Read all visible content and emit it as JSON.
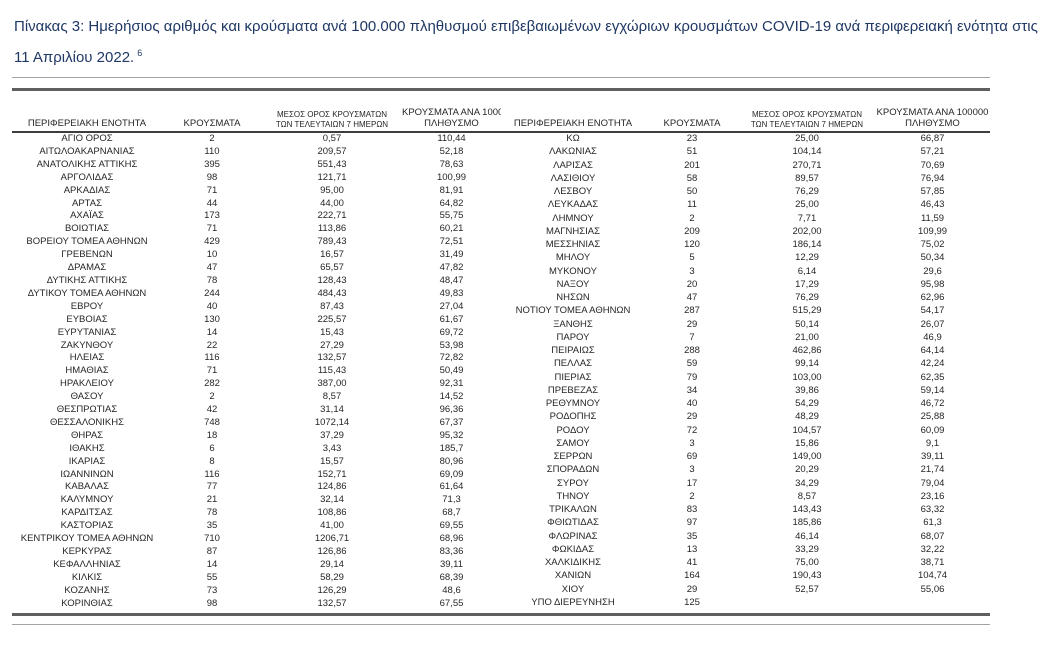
{
  "title": {
    "text": "Πίνακας 3:  Ημερήσιος αριθμός και κρούσματα ανά 100.000 πληθυσμού επιβεβαιωμένων εγχώριων κρουσμάτων COVID-19 ανά περιφερειακή ενότητα στις 11 Απριλίου 2022.",
    "footnote_marker": "6"
  },
  "colors": {
    "title_text": "#1f3864",
    "body_text": "#262626",
    "header_underline": "#3d3d3d",
    "rule_thick": "#5f5f5f",
    "rule_thin": "#a3a3a3"
  },
  "table": {
    "columns": {
      "region": "ΠΕΡΙΦΕΡΕΙΑΚΗ ΕΝΟΤΗΤΑ",
      "cases": "ΚΡΟΥΣΜΑΤΑ",
      "avg7_line1": "ΜΕΣΟΣ ΟΡΟΣ ΚΡΟΥΣΜΑΤΩΝ",
      "avg7_line2": "ΤΩΝ ΤΕΛΕΥΤΑΙΩΝ 7 ΗΜΕΡΩΝ",
      "per100k_line1": "ΚΡΟΥΣΜΑΤΑ ΑΝΑ 100000",
      "per100k_line2": "ΠΛΗΘΥΣΜΟ"
    },
    "left_rows": [
      [
        "ΑΓΙΟ ΟΡΟΣ",
        "2",
        "0,57",
        "110,44"
      ],
      [
        "ΑΙΤΩΛΟΑΚΑΡΝΑΝΙΑΣ",
        "110",
        "209,57",
        "52,18"
      ],
      [
        "ΑΝΑΤΟΛΙΚΗΣ ΑΤΤΙΚΗΣ",
        "395",
        "551,43",
        "78,63"
      ],
      [
        "ΑΡΓΟΛΙΔΑΣ",
        "98",
        "121,71",
        "100,99"
      ],
      [
        "ΑΡΚΑΔΙΑΣ",
        "71",
        "95,00",
        "81,91"
      ],
      [
        "ΑΡΤΑΣ",
        "44",
        "44,00",
        "64,82"
      ],
      [
        "ΑΧΑΪΑΣ",
        "173",
        "222,71",
        "55,75"
      ],
      [
        "ΒΟΙΩΤΙΑΣ",
        "71",
        "113,86",
        "60,21"
      ],
      [
        "ΒΟΡΕΙΟΥ ΤΟΜΕΑ ΑΘΗΝΩΝ",
        "429",
        "789,43",
        "72,51"
      ],
      [
        "ΓΡΕΒΕΝΩΝ",
        "10",
        "16,57",
        "31,49"
      ],
      [
        "ΔΡΑΜΑΣ",
        "47",
        "65,57",
        "47,82"
      ],
      [
        "ΔΥΤΙΚΗΣ ΑΤΤΙΚΗΣ",
        "78",
        "128,43",
        "48,47"
      ],
      [
        "ΔΥΤΙΚΟΥ ΤΟΜΕΑ ΑΘΗΝΩΝ",
        "244",
        "484,43",
        "49,83"
      ],
      [
        "ΕΒΡΟΥ",
        "40",
        "87,43",
        "27,04"
      ],
      [
        "ΕΥΒΟΙΑΣ",
        "130",
        "225,57",
        "61,67"
      ],
      [
        "ΕΥΡΥΤΑΝΙΑΣ",
        "14",
        "15,43",
        "69,72"
      ],
      [
        "ΖΑΚΥΝΘΟΥ",
        "22",
        "27,29",
        "53,98"
      ],
      [
        "ΗΛΕΙΑΣ",
        "116",
        "132,57",
        "72,82"
      ],
      [
        "ΗΜΑΘΙΑΣ",
        "71",
        "115,43",
        "50,49"
      ],
      [
        "ΗΡΑΚΛΕΙΟΥ",
        "282",
        "387,00",
        "92,31"
      ],
      [
        "ΘΑΣΟΥ",
        "2",
        "8,57",
        "14,52"
      ],
      [
        "ΘΕΣΠΡΩΤΙΑΣ",
        "42",
        "31,14",
        "96,36"
      ],
      [
        "ΘΕΣΣΑΛΟΝΙΚΗΣ",
        "748",
        "1072,14",
        "67,37"
      ],
      [
        "ΘΗΡΑΣ",
        "18",
        "37,29",
        "95,32"
      ],
      [
        "ΙΘΑΚΗΣ",
        "6",
        "3,43",
        "185,7"
      ],
      [
        "ΙΚΑΡΙΑΣ",
        "8",
        "15,57",
        "80,96"
      ],
      [
        "ΙΩΑΝΝΙΝΩΝ",
        "116",
        "152,71",
        "69,09"
      ],
      [
        "ΚΑΒΑΛΑΣ",
        "77",
        "124,86",
        "61,64"
      ],
      [
        "ΚΑΛΥΜΝΟΥ",
        "21",
        "32,14",
        "71,3"
      ],
      [
        "ΚΑΡΔΙΤΣΑΣ",
        "78",
        "108,86",
        "68,7"
      ],
      [
        "ΚΑΣΤΟΡΙΑΣ",
        "35",
        "41,00",
        "69,55"
      ],
      [
        "ΚΕΝΤΡΙΚΟΥ ΤΟΜΕΑ ΑΘΗΝΩΝ",
        "710",
        "1206,71",
        "68,96"
      ],
      [
        "ΚΕΡΚΥΡΑΣ",
        "87",
        "126,86",
        "83,36"
      ],
      [
        "ΚΕΦΑΛΛΗΝΙΑΣ",
        "14",
        "29,14",
        "39,11"
      ],
      [
        "ΚΙΛΚΙΣ",
        "55",
        "58,29",
        "68,39"
      ],
      [
        "ΚΟΖΑΝΗΣ",
        "73",
        "126,29",
        "48,6"
      ],
      [
        "ΚΟΡΙΝΘΙΑΣ",
        "98",
        "132,57",
        "67,55"
      ]
    ],
    "right_rows": [
      [
        "ΚΩ",
        "23",
        "25,00",
        "66,87"
      ],
      [
        "ΛΑΚΩΝΙΑΣ",
        "51",
        "104,14",
        "57,21"
      ],
      [
        "ΛΑΡΙΣΑΣ",
        "201",
        "270,71",
        "70,69"
      ],
      [
        "ΛΑΣΙΘΙΟΥ",
        "58",
        "89,57",
        "76,94"
      ],
      [
        "ΛΕΣΒΟΥ",
        "50",
        "76,29",
        "57,85"
      ],
      [
        "ΛΕΥΚΑΔΑΣ",
        "11",
        "25,00",
        "46,43"
      ],
      [
        "ΛΗΜΝΟΥ",
        "2",
        "7,71",
        "11,59"
      ],
      [
        "ΜΑΓΝΗΣΙΑΣ",
        "209",
        "202,00",
        "109,99"
      ],
      [
        "ΜΕΣΣΗΝΙΑΣ",
        "120",
        "186,14",
        "75,02"
      ],
      [
        "ΜΗΛΟΥ",
        "5",
        "12,29",
        "50,34"
      ],
      [
        "ΜΥΚΟΝΟΥ",
        "3",
        "6,14",
        "29,6"
      ],
      [
        "ΝΑΞΟΥ",
        "20",
        "17,29",
        "95,98"
      ],
      [
        "ΝΗΣΩΝ",
        "47",
        "76,29",
        "62,96"
      ],
      [
        "ΝΟΤΙΟΥ ΤΟΜΕΑ ΑΘΗΝΩΝ",
        "287",
        "515,29",
        "54,17"
      ],
      [
        "ΞΑΝΘΗΣ",
        "29",
        "50,14",
        "26,07"
      ],
      [
        "ΠΑΡΟΥ",
        "7",
        "21,00",
        "46,9"
      ],
      [
        "ΠΕΙΡΑΙΩΣ",
        "288",
        "462,86",
        "64,14"
      ],
      [
        "ΠΕΛΛΑΣ",
        "59",
        "99,14",
        "42,24"
      ],
      [
        "ΠΙΕΡΙΑΣ",
        "79",
        "103,00",
        "62,35"
      ],
      [
        "ΠΡΕΒΕΖΑΣ",
        "34",
        "39,86",
        "59,14"
      ],
      [
        "ΡΕΘΥΜΝΟΥ",
        "40",
        "54,29",
        "46,72"
      ],
      [
        "ΡΟΔΟΠΗΣ",
        "29",
        "48,29",
        "25,88"
      ],
      [
        "ΡΟΔΟΥ",
        "72",
        "104,57",
        "60,09"
      ],
      [
        "ΣΑΜΟΥ",
        "3",
        "15,86",
        "9,1"
      ],
      [
        "ΣΕΡΡΩΝ",
        "69",
        "149,00",
        "39,11"
      ],
      [
        "ΣΠΟΡΑΔΩΝ",
        "3",
        "20,29",
        "21,74"
      ],
      [
        "ΣΥΡΟΥ",
        "17",
        "34,29",
        "79,04"
      ],
      [
        "ΤΗΝΟΥ",
        "2",
        "8,57",
        "23,16"
      ],
      [
        "ΤΡΙΚΑΛΩΝ",
        "83",
        "143,43",
        "63,32"
      ],
      [
        "ΦΘΙΩΤΙΔΑΣ",
        "97",
        "185,86",
        "61,3"
      ],
      [
        "ΦΛΩΡΙΝΑΣ",
        "35",
        "46,14",
        "68,07"
      ],
      [
        "ΦΩΚΙΔΑΣ",
        "13",
        "33,29",
        "32,22"
      ],
      [
        "ΧΑΛΚΙΔΙΚΗΣ",
        "41",
        "75,00",
        "38,71"
      ],
      [
        "ΧΑΝΙΩΝ",
        "164",
        "190,43",
        "104,74"
      ],
      [
        "ΧΙΟΥ",
        "29",
        "52,57",
        "55,06"
      ],
      [
        "ΥΠΟ ΔΙΕΡΕΥΝΗΣΗ",
        "125",
        "",
        ""
      ]
    ]
  }
}
